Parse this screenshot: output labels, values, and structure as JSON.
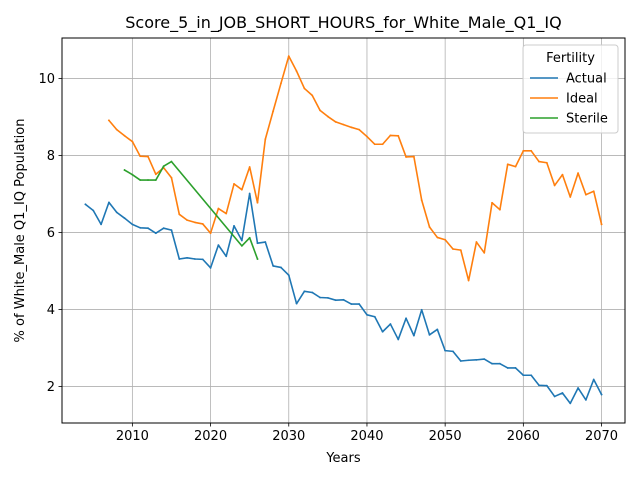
{
  "chart_data": {
    "type": "line",
    "title": "Score_5_in_JOB_SHORT_HOURS_for_White_Male_Q1_IQ",
    "xlabel": "Years",
    "ylabel": "% of White_Male Q1_IQ Population",
    "xlim": [
      2001,
      2073
    ],
    "ylim": [
      1.05,
      11.05
    ],
    "xticks": [
      2010,
      2020,
      2030,
      2040,
      2050,
      2060,
      2070
    ],
    "yticks": [
      2,
      4,
      6,
      8,
      10
    ],
    "grid": true,
    "legend": {
      "title": "Fertility",
      "placement": "top-right"
    },
    "series": [
      {
        "name": "Actual",
        "color": "#1f77b4",
        "x": [
          2004,
          2005,
          2006,
          2007,
          2008,
          2009,
          2010,
          2011,
          2012,
          2013,
          2014,
          2015,
          2016,
          2017,
          2018,
          2019,
          2020,
          2021,
          2022,
          2023,
          2024,
          2025,
          2026,
          2027,
          2028,
          2029,
          2030,
          2031,
          2032,
          2033,
          2034,
          2035,
          2036,
          2037,
          2038,
          2039,
          2040,
          2041,
          2042,
          2043,
          2044,
          2045,
          2046,
          2047,
          2048,
          2049,
          2050,
          2051,
          2052,
          2053,
          2054,
          2055,
          2056,
          2057,
          2058,
          2059,
          2060,
          2061,
          2062,
          2063,
          2064,
          2065,
          2066,
          2067,
          2068,
          2069,
          2070
        ],
        "values": [
          6.73,
          6.57,
          6.21,
          6.78,
          6.52,
          6.37,
          6.21,
          6.12,
          6.11,
          5.98,
          6.11,
          6.06,
          5.31,
          5.34,
          5.31,
          5.3,
          5.08,
          5.67,
          5.38,
          6.17,
          5.79,
          7.01,
          5.72,
          5.75,
          5.13,
          5.09,
          4.89,
          4.15,
          4.47,
          4.44,
          4.31,
          4.3,
          4.24,
          4.25,
          4.14,
          4.14,
          3.86,
          3.81,
          3.42,
          3.62,
          3.22,
          3.77,
          3.32,
          3.99,
          3.34,
          3.48,
          2.93,
          2.91,
          2.66,
          2.68,
          2.69,
          2.71,
          2.59,
          2.59,
          2.48,
          2.48,
          2.29,
          2.29,
          2.03,
          2.02,
          1.74,
          1.83,
          1.56,
          1.96,
          1.65,
          2.18,
          1.79
        ]
      },
      {
        "name": "Ideal",
        "color": "#ff7f0e",
        "x": [
          2007,
          2008,
          2009,
          2010,
          2011,
          2012,
          2013,
          2014,
          2015,
          2016,
          2017,
          2018,
          2019,
          2020,
          2021,
          2022,
          2023,
          2024,
          2025,
          2026,
          2027,
          2028,
          2029,
          2030,
          2031,
          2032,
          2033,
          2034,
          2035,
          2036,
          2037,
          2038,
          2039,
          2040,
          2041,
          2042,
          2043,
          2044,
          2045,
          2046,
          2047,
          2048,
          2049,
          2050,
          2051,
          2052,
          2053,
          2054,
          2055,
          2056,
          2057,
          2058,
          2059,
          2060,
          2061,
          2062,
          2063,
          2064,
          2065,
          2066,
          2067,
          2068,
          2069,
          2070
        ],
        "values": [
          8.91,
          8.67,
          8.51,
          8.36,
          7.98,
          7.97,
          7.51,
          7.68,
          7.42,
          6.47,
          6.32,
          6.26,
          6.22,
          5.98,
          6.62,
          6.49,
          7.26,
          7.11,
          7.7,
          6.77,
          8.42,
          9.15,
          9.87,
          10.58,
          10.19,
          9.74,
          9.56,
          9.17,
          9.01,
          8.87,
          8.8,
          8.73,
          8.67,
          8.49,
          8.29,
          8.29,
          8.52,
          8.51,
          7.96,
          7.97,
          6.84,
          6.14,
          5.87,
          5.81,
          5.57,
          5.54,
          4.75,
          5.75,
          5.47,
          6.77,
          6.59,
          7.77,
          7.71,
          8.12,
          8.12,
          7.84,
          7.81,
          7.22,
          7.5,
          6.92,
          7.54,
          6.98,
          7.07,
          6.21
        ]
      },
      {
        "name": "Sterile",
        "color": "#2ca02c",
        "x": [
          2009,
          2010,
          2011,
          2012,
          2013,
          2014,
          2015,
          2024,
          2025,
          2026
        ],
        "values": [
          7.62,
          7.5,
          7.36,
          7.36,
          7.36,
          7.72,
          7.84,
          5.65,
          5.86,
          5.31
        ]
      }
    ]
  }
}
